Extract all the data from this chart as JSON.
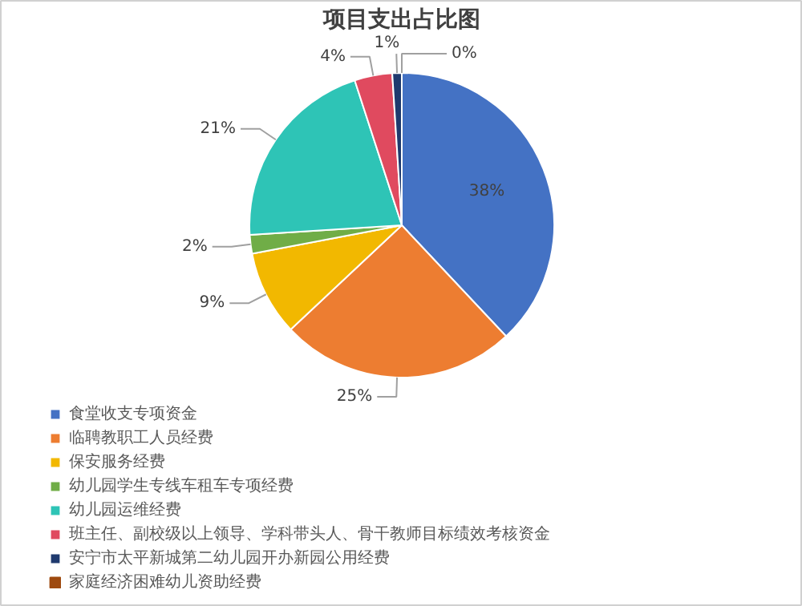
{
  "chart_data": {
    "type": "pie",
    "title": "项目支出占比图",
    "categories": [
      "食堂收支专项资金",
      "临聘教职工人员经费",
      "保安服务经费",
      "幼儿园学生专线车租车专项经费",
      "幼儿园运维经费",
      "班主任、副校级以上领导、学科带头人、骨干教师目标绩效考核资金",
      "安宁市太平新城第二幼儿园开办新园公用经费",
      "家庭经济困难幼儿资助经费"
    ],
    "values": [
      38,
      25,
      9,
      2,
      21,
      4,
      1,
      0
    ],
    "colors": [
      "#4472c4",
      "#ed7d31",
      "#f2b800",
      "#70ad47",
      "#2ec4b6",
      "#e04a5f",
      "#1f3a6e",
      "#9e4a0f"
    ],
    "value_labels": [
      "38%",
      "25%",
      "9%",
      "2%",
      "21%",
      "4%",
      "1%",
      "0%"
    ],
    "legend": "bottom left"
  }
}
